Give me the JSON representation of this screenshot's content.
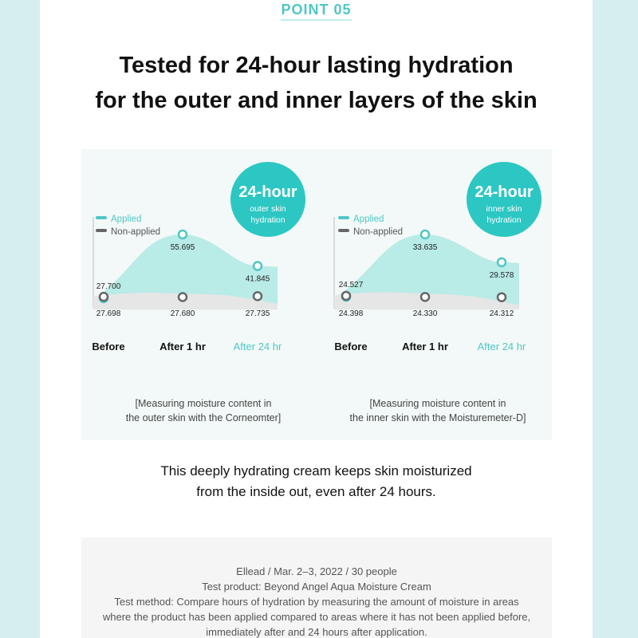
{
  "header": {
    "point_label": "POINT 05",
    "headline_line1": "Tested for 24-hour lasting hydration",
    "headline_line2": "for the outer and inner layers of the skin"
  },
  "colors": {
    "applied": "#4fc7c5",
    "applied_fill": "#b9ebe7",
    "non_applied": "#666666",
    "non_applied_fill": "#e6e6e6",
    "badge": "#2cc7c3",
    "highlight_tick": "#4fc7c5"
  },
  "chart_data": [
    {
      "type": "area",
      "badge": {
        "big": "24-hour",
        "line1": "outer skin",
        "line2": "hydration"
      },
      "legend": [
        "Applied",
        "Non-applied"
      ],
      "legend_position": "top-left",
      "categories": [
        "Before",
        "After 1 hr",
        "After 24 hr"
      ],
      "highlight_category": "After 24 hr",
      "series": [
        {
          "name": "Applied",
          "values": [
            27.7,
            55.695,
            41.845
          ],
          "labels": [
            "27.700",
            "55.695",
            "41.845"
          ]
        },
        {
          "name": "Non-applied",
          "values": [
            27.698,
            27.68,
            27.735
          ],
          "labels": [
            "27.698",
            "27.680",
            "27.735"
          ]
        }
      ],
      "caption_line1": "[Measuring moisture content in",
      "caption_line2": "the outer skin with the Corneomter]"
    },
    {
      "type": "area",
      "badge": {
        "big": "24-hour",
        "line1": "inner skin",
        "line2": "hydration"
      },
      "legend": [
        "Applied",
        "Non-applied"
      ],
      "legend_position": "top-left",
      "categories": [
        "Before",
        "After 1 hr",
        "After 24 hr"
      ],
      "highlight_category": "After 24 hr",
      "series": [
        {
          "name": "Applied",
          "values": [
            24.527,
            33.635,
            29.578
          ],
          "labels": [
            "24.527",
            "33.635",
            "29.578"
          ]
        },
        {
          "name": "Non-applied",
          "values": [
            24.398,
            24.33,
            24.312
          ],
          "labels": [
            "24.398",
            "24.330",
            "24.312"
          ]
        }
      ],
      "caption_line1": "[Measuring moisture content in",
      "caption_line2": "the inner skin with the Moisturemeter-D]"
    }
  ],
  "summary": {
    "line1": "This deeply hydrating cream keeps skin moisturized",
    "line2": "from the inside out, even after 24 hours."
  },
  "test_info": {
    "line1": "Ellead / Mar. 2–3, 2022 / 30 people",
    "line2": "Test product: Beyond Angel Aqua Moisture Cream",
    "line3": "Test method: Compare hours of hydration by measuring the amount of moisture in areas",
    "line4": "where the product has been applied compared to areas where it has not been applied before,",
    "line5": "immediately after and 24 hours after application."
  }
}
